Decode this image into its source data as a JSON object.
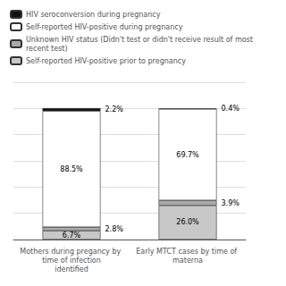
{
  "chart_data": {
    "type": "bar",
    "stacked": true,
    "categories": [
      "Mothers during pregancy by time of infection\nidentified",
      "Early MTCT cases by time of materna"
    ],
    "series": [
      {
        "name": "Self-reported HIV-positive prior to pregnancy",
        "color": "#c8c8c8",
        "values": [
          6.7,
          26.0
        ],
        "value_labels": [
          "6.7%",
          "26.0%"
        ]
      },
      {
        "name": "Unknown HIV status (Didn't test or didn't receive result of most recent test)",
        "color": "#aaaaaa",
        "values": [
          2.8,
          3.9
        ],
        "value_labels": [
          "2.8%",
          "3.9%"
        ]
      },
      {
        "name": "Self-reported HIV-positive during pregnancy",
        "color": "#ffffff",
        "values": [
          88.5,
          69.7
        ],
        "value_labels": [
          "88.5%",
          "69.7%"
        ]
      },
      {
        "name": "HIV seroconversion during pregnancy",
        "color": "#111111",
        "values": [
          2.2,
          0.4
        ],
        "value_labels": [
          "2.2%",
          "0.4%"
        ]
      }
    ],
    "ylim": [
      0,
      120
    ],
    "yticks": [
      0,
      20,
      40,
      60,
      80,
      100,
      120
    ],
    "grid": true,
    "tick_labels": "x",
    "data_labels": true,
    "legend": "upper left"
  }
}
